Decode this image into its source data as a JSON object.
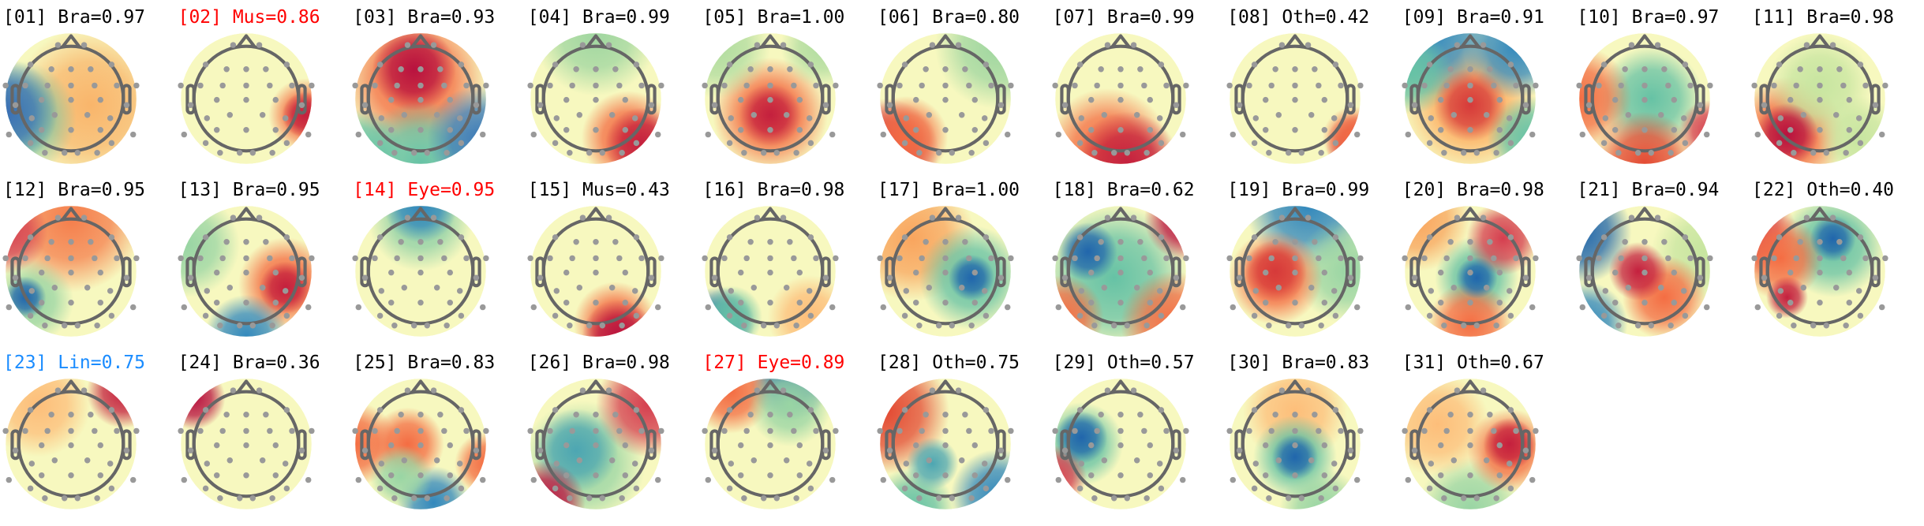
{
  "colors": {
    "default": "#000000",
    "Mus": "#ff0000",
    "Eye": "#ff0000",
    "Lin": "#1a8cff"
  },
  "components": [
    {
      "id": "01",
      "label": "[01] Bra=0.97",
      "label_color": "#000000"
    },
    {
      "id": "02",
      "label": "[02] Mus=0.86",
      "label_color": "#ff0000"
    },
    {
      "id": "03",
      "label": "[03] Bra=0.93",
      "label_color": "#000000"
    },
    {
      "id": "04",
      "label": "[04] Bra=0.99",
      "label_color": "#000000"
    },
    {
      "id": "05",
      "label": "[05] Bra=1.00",
      "label_color": "#000000"
    },
    {
      "id": "06",
      "label": "[06] Bra=0.80",
      "label_color": "#000000"
    },
    {
      "id": "07",
      "label": "[07] Bra=0.99",
      "label_color": "#000000"
    },
    {
      "id": "08",
      "label": "[08] Oth=0.42",
      "label_color": "#000000"
    },
    {
      "id": "09",
      "label": "[09] Bra=0.91",
      "label_color": "#000000"
    },
    {
      "id": "10",
      "label": "[10] Bra=0.97",
      "label_color": "#000000"
    },
    {
      "id": "11",
      "label": "[11] Bra=0.98",
      "label_color": "#000000"
    },
    {
      "id": "12",
      "label": "[12] Bra=0.95",
      "label_color": "#000000"
    },
    {
      "id": "13",
      "label": "[13] Bra=0.95",
      "label_color": "#000000"
    },
    {
      "id": "14",
      "label": "[14] Eye=0.95",
      "label_color": "#ff0000"
    },
    {
      "id": "15",
      "label": "[15] Mus=0.43",
      "label_color": "#000000"
    },
    {
      "id": "16",
      "label": "[16] Bra=0.98",
      "label_color": "#000000"
    },
    {
      "id": "17",
      "label": "[17] Bra=1.00",
      "label_color": "#000000"
    },
    {
      "id": "18",
      "label": "[18] Bra=0.62",
      "label_color": "#000000"
    },
    {
      "id": "19",
      "label": "[19] Bra=0.99",
      "label_color": "#000000"
    },
    {
      "id": "20",
      "label": "[20] Bra=0.98",
      "label_color": "#000000"
    },
    {
      "id": "21",
      "label": "[21] Bra=0.94",
      "label_color": "#000000"
    },
    {
      "id": "22",
      "label": "[22] Oth=0.40",
      "label_color": "#000000"
    },
    {
      "id": "23",
      "label": "[23] Lin=0.75",
      "label_color": "#1a8cff"
    },
    {
      "id": "24",
      "label": "[24] Bra=0.36",
      "label_color": "#000000"
    },
    {
      "id": "25",
      "label": "[25] Bra=0.83",
      "label_color": "#000000"
    },
    {
      "id": "26",
      "label": "[26] Bra=0.98",
      "label_color": "#000000"
    },
    {
      "id": "27",
      "label": "[27] Eye=0.89",
      "label_color": "#ff0000"
    },
    {
      "id": "28",
      "label": "[28] Oth=0.75",
      "label_color": "#000000"
    },
    {
      "id": "29",
      "label": "[29] Oth=0.57",
      "label_color": "#000000"
    },
    {
      "id": "30",
      "label": "[30] Bra=0.83",
      "label_color": "#000000"
    },
    {
      "id": "31",
      "label": "[31] Oth=0.67",
      "label_color": "#000000"
    }
  ]
}
